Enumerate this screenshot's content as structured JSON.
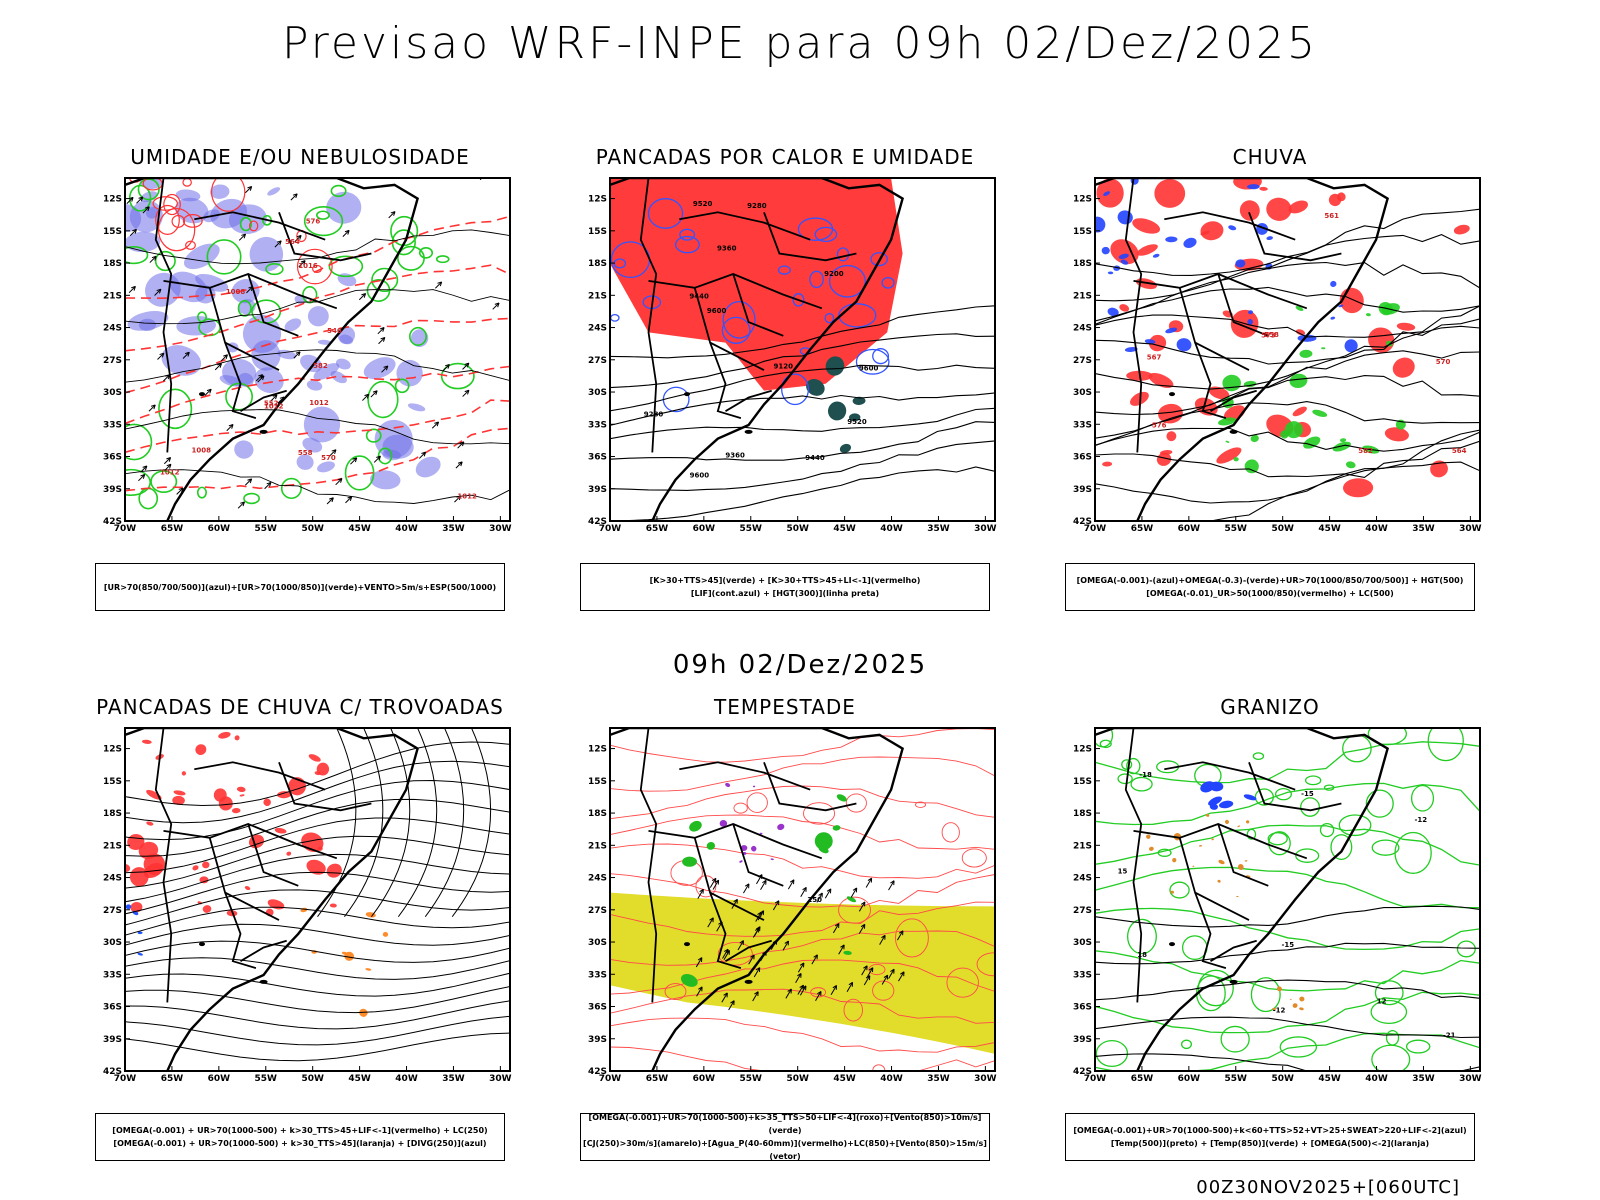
{
  "header": {
    "title": "Previsao WRF-INPE  para 09h 02/Dez/2025",
    "mid_time": "09h 02/Dez/2025",
    "footer": "00Z30NOV2025+[060UTC]"
  },
  "axes": {
    "lat_labels": [
      "12S",
      "15S",
      "18S",
      "21S",
      "24S",
      "27S",
      "30S",
      "33S",
      "36S",
      "39S",
      "42S"
    ],
    "lon_labels": [
      "70W",
      "65W",
      "60W",
      "55W",
      "50W",
      "45W",
      "40W",
      "35W",
      "30W"
    ]
  },
  "panels": [
    {
      "title": "UMIDADE E/OU NEBULOSIDADE",
      "caption": [
        "[UR>70(850/700/500)](azul)+[UR>70(1000/850)](verde)+VENTO>5m/s+ESP(500/1000)"
      ],
      "contour_labels": [
        "1012",
        "1012",
        "1008",
        "1012",
        "1008",
        "1012",
        "1016",
        "576",
        "570",
        "564",
        "558",
        "552",
        "546",
        "582"
      ],
      "colors": {
        "primary": "#6f6fe8",
        "secondary": "#22cc22",
        "accent": "#ff3333"
      }
    },
    {
      "title": "PANCADAS POR CALOR E UMIDADE",
      "caption": [
        "[K>30+TTS>45](verde) + [K>30+TTS>45+LI<-1](vermelho)",
        "[LIF](cont.azul) + [HGT(300)](linha preta)"
      ],
      "contour_labels": [
        "9600",
        "9600",
        "9600",
        "9520",
        "9520",
        "9440",
        "9440",
        "9360",
        "9360",
        "9280",
        "9280",
        "9200",
        "9120"
      ],
      "colors": {
        "primary": "#ff3b3b",
        "secondary": "#1f4f4f",
        "accent": "#3355ff"
      }
    },
    {
      "title": "CHUVA",
      "caption": [
        "[OMEGA(-0.001)-(azul)+OMEGA(-0.3)-(verde)+UR>70(1000/850/700/500)] + HGT(500)",
        "[OMEGA(-0.01)_UR>50(1000/850)(vermelho) + LC(500)"
      ],
      "contour_labels": [
        "582",
        "576",
        "573",
        "570",
        "567",
        "564",
        "561",
        "558"
      ],
      "colors": {
        "primary": "#ff3333",
        "secondary": "#22cc22",
        "accent": "#2244ff"
      }
    },
    {
      "title": "PANCADAS DE CHUVA C/ TROVOADAS",
      "caption": [
        "[OMEGA(-0.001) + UR>70(1000-500) + k>30_TTS>45+LIF<-1](vermelho) + LC(250)",
        "[OMEGA(-0.001) + UR>70(1000-500) + k>30_TTS>45](laranja) + [DIVG(250)](azul)"
      ],
      "contour_labels": [],
      "colors": {
        "primary": "#ff3333",
        "secondary": "#ff8c2a",
        "accent": "#2255ff"
      }
    },
    {
      "title": "TEMPESTADE",
      "caption": [
        "[OMEGA(-0.001)+UR>70(1000-500)+k>35_TTS>50+LIF<-4](roxo)+[Vento(850)>10m/s](verde)",
        "[CJ(250)>30m/s](amarelo)+[Agua_P(40-60mm)](vermelho)+LC(850)+[Vento(850)>15m/s](vetor)"
      ],
      "contour_labels": [
        "250"
      ],
      "colors": {
        "primary": "#e2dc2a",
        "secondary": "#22bb22",
        "accent": "#9933cc"
      }
    },
    {
      "title": "GRANIZO",
      "caption": [
        "[OMEGA(-0.001)+UR>70(1000-500)+k<60+TTS>52+VT>25+SWEAT>220+LIF<-2](azul)",
        "[Temp(500)](preto) + [Temp(850)](verde) + [OMEGA(500)<-2](laranja)"
      ],
      "contour_labels": [
        "-12",
        "-12",
        "-15",
        "-15",
        "-18",
        "-21",
        "12",
        "15",
        "18"
      ],
      "colors": {
        "primary": "#22cc22",
        "secondary": "#2244ff",
        "accent": "#e08a2a"
      }
    }
  ]
}
